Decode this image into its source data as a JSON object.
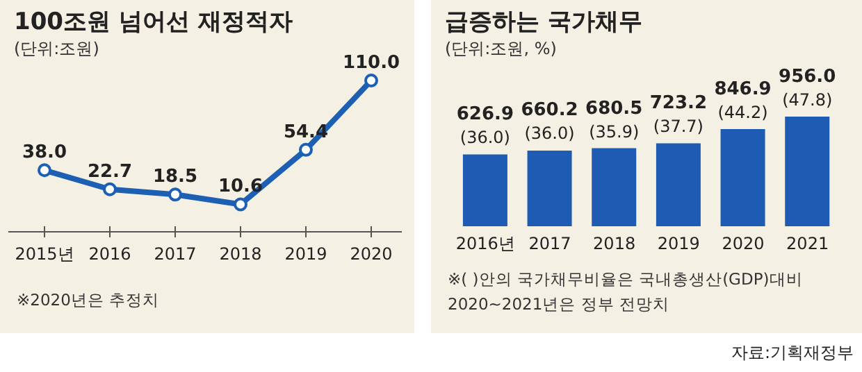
{
  "chart_data": [
    {
      "type": "line",
      "title": "100조원 넘어선 재정적자",
      "subtitle": "(단위:조원)",
      "categories": [
        "2015년",
        "2016",
        "2017",
        "2018",
        "2019",
        "2020"
      ],
      "values": [
        38.0,
        22.7,
        18.5,
        10.6,
        54.4,
        110.0
      ],
      "color": "#1d5fb3",
      "marker": "circle",
      "value_labels": [
        "38.0",
        "22.7",
        "18.5",
        "10.6",
        "54.4",
        "110.0"
      ],
      "annotations": [
        "※2020년은 추정치"
      ]
    },
    {
      "type": "bar",
      "title": "급증하는 국가채무",
      "subtitle": "(단위:조원, %)",
      "categories": [
        "2016년",
        "2017",
        "2018",
        "2019",
        "2020",
        "2021"
      ],
      "values": [
        626.9,
        660.2,
        680.5,
        723.2,
        846.9,
        956.0
      ],
      "color": "#1e5cb3",
      "value_labels": [
        "626.9 (36.0)",
        "660.2 (36.0)",
        "680.5 (35.9)",
        "723.2 (37.7)",
        "846.9 (44.2)",
        "956.0 (47.8)"
      ],
      "annotations": [
        "※( )안의 국가채무비율은 국내총생산(GDP)대비",
        "2020~2021년은 정부 전망치",
        "자료:기획재정부"
      ]
    }
  ]
}
